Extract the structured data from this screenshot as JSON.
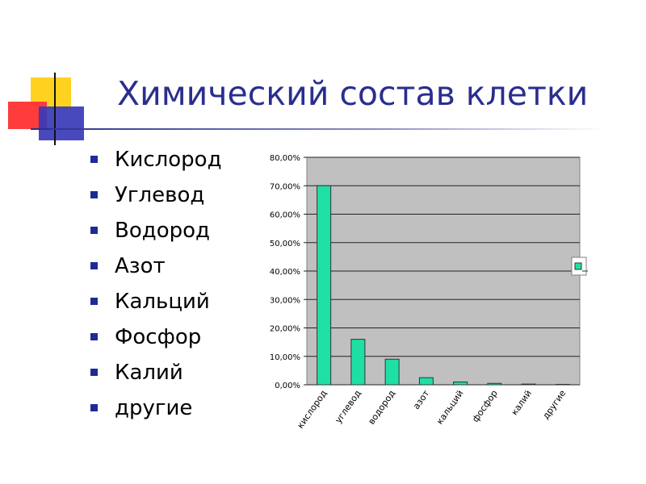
{
  "slide": {
    "title": "Химический состав клетки",
    "accent_color": "#2a2e8e",
    "bullet_color": "#1f2a96",
    "bullets": [
      "Кислород",
      "Углевод",
      "Водород",
      "Азот",
      "Кальций",
      "Фосфор",
      "Калий",
      "другие"
    ],
    "logo_colors": {
      "yellow": "#ffd21f",
      "red": "#ff3b3b",
      "blue": "#3a3ab8"
    }
  },
  "chart_data": {
    "type": "bar",
    "categories": [
      "кислород",
      "углевод",
      "водород",
      "азот",
      "кальций",
      "фосфор",
      "калий",
      "другие"
    ],
    "values": [
      70,
      16,
      9,
      2.5,
      1,
      0.5,
      0.25,
      0.15
    ],
    "ylim": [
      0,
      80
    ],
    "yticks": [
      "0,00%",
      "10,00%",
      "20,00%",
      "30,00%",
      "40,00%",
      "50,00%",
      "60,00%",
      "70,00%",
      "80,00%"
    ],
    "grid": true,
    "bar_color": "#1fe0a4",
    "plot_bg": "#c0c0c0",
    "legend": "right"
  }
}
